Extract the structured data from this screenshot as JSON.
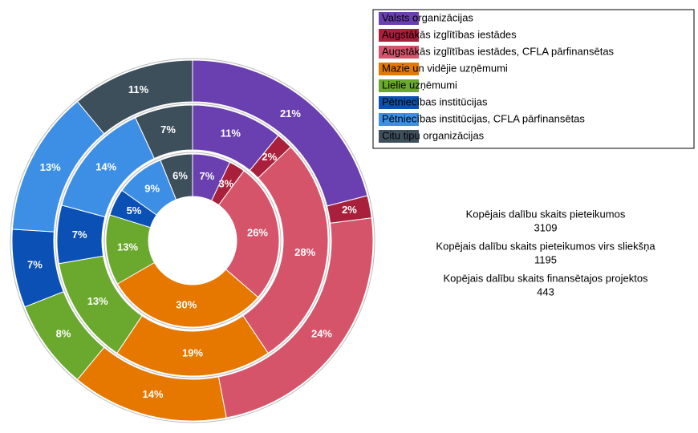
{
  "chart_data": {
    "type": "donut",
    "categories": [
      "Valsts organizācijas",
      "Augstākās izglītības iestādes",
      "Augstākās izglītības iestādes, CFLA pārfinansētas",
      "Mazie un vidējie uzņēmumi",
      "Lielie uzņēmumi",
      "Pētniecības institūcijas",
      "Pētniecības institūcijas, CFLA pārfinansētas",
      "Citu tipu organizācijas"
    ],
    "colors": [
      "#6a3fb0",
      "#a8203c",
      "#d6546a",
      "#e67800",
      "#6aa82e",
      "#0b50b4",
      "#3d8fe6",
      "#3e4f5c"
    ],
    "series": [
      {
        "name": "Kopējais dalību skaits pieteikumos",
        "total": 3109,
        "values": [
          21,
          2,
          24,
          14,
          8,
          7,
          13,
          11
        ],
        "value_labels": [
          "21%",
          "2%",
          "24%",
          "14%",
          "8%",
          "7%",
          "13%",
          "11%"
        ]
      },
      {
        "name": "Kopējais dalību skaits pieteikumos virs sliekšņa",
        "total": 1195,
        "values": [
          11,
          2,
          28,
          19,
          13,
          7,
          14,
          7
        ],
        "value_labels": [
          "11%",
          "2%",
          "28%",
          "19%",
          "13%",
          "7%",
          "14%",
          "7%"
        ]
      },
      {
        "name": "Kopējais dalību skaits finansētajos projektos",
        "total": 443,
        "values": [
          7,
          3,
          26,
          30,
          13,
          5,
          9,
          6
        ],
        "value_labels": [
          "7%",
          "3%",
          "26%",
          "30%",
          "13%",
          "5%",
          "9%",
          "6%"
        ]
      }
    ]
  }
}
